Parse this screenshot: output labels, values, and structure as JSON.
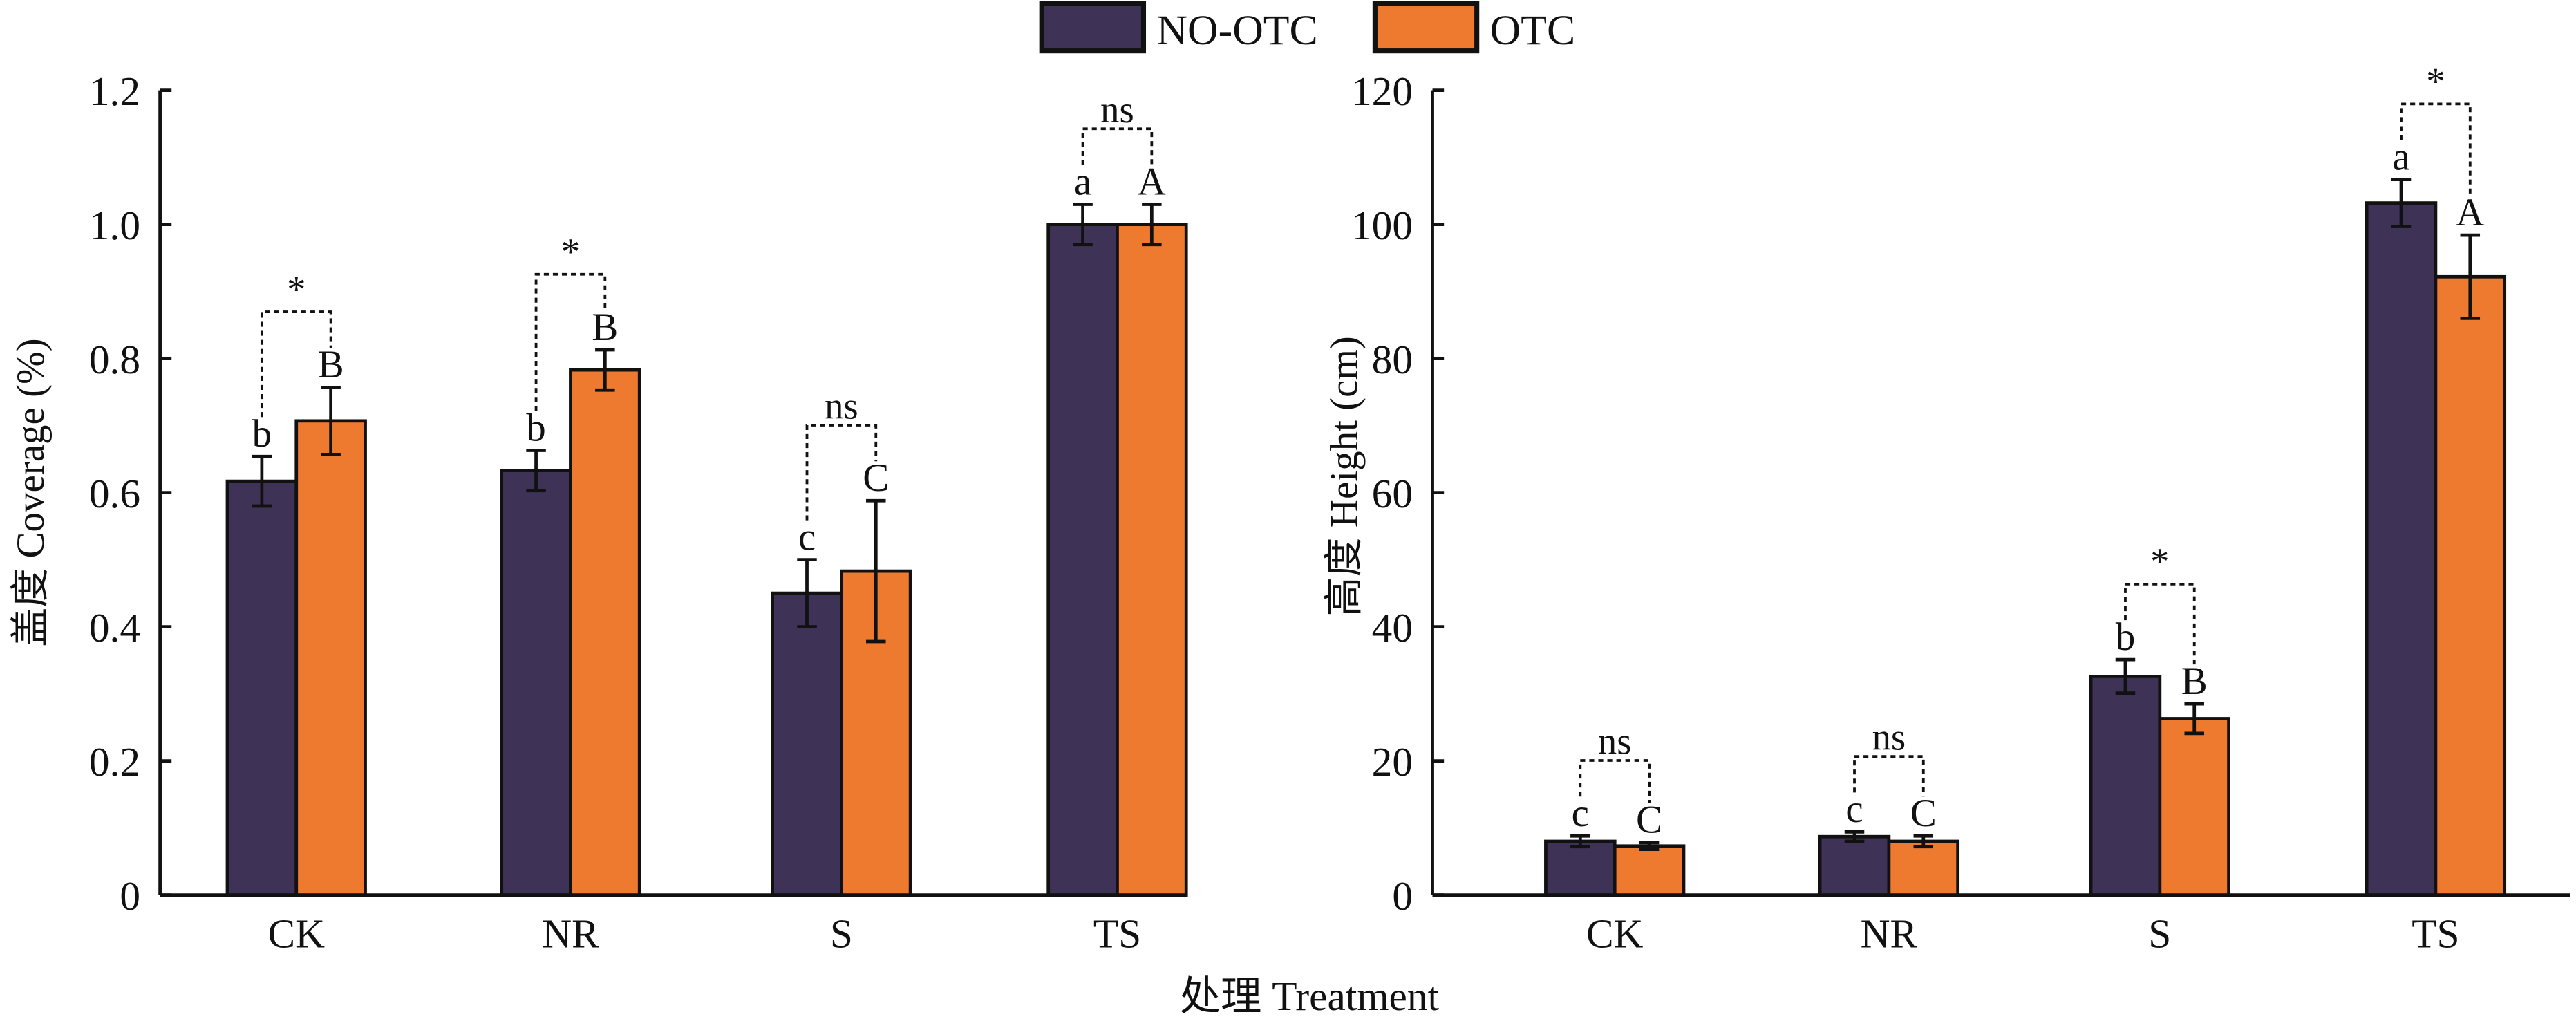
{
  "legend": {
    "items": [
      {
        "label": "NO-OTC",
        "color": "#3f3257"
      },
      {
        "label": "OTC",
        "color": "#ee7a30"
      }
    ]
  },
  "shared_xlabel": "处理 Treatment",
  "chart_data": [
    {
      "type": "bar",
      "title": "",
      "xlabel": "处理 Treatment",
      "ylabel": "盖度 Coverage (%)",
      "categories": [
        "CK",
        "NR",
        "S",
        "TS"
      ],
      "ylim": [
        0,
        1.2
      ],
      "yticks": [
        0,
        0.2,
        0.4,
        0.6,
        0.8,
        1.0,
        1.2
      ],
      "ytick_labels": [
        "0",
        "0.2",
        "0.4",
        "0.6",
        "0.8",
        "1.0",
        "1.2"
      ],
      "grid": false,
      "legend_position": "top-center",
      "series": [
        {
          "name": "NO-OTC",
          "color": "#3f3257",
          "values": [
            0.617,
            0.633,
            0.45,
            1.0
          ],
          "errors": [
            0.037,
            0.03,
            0.05,
            0.03
          ],
          "letters": [
            "b",
            "b",
            "c",
            "a"
          ]
        },
        {
          "name": "OTC",
          "color": "#ee7a30",
          "values": [
            0.707,
            0.783,
            0.483,
            1.0
          ],
          "errors": [
            0.05,
            0.03,
            0.105,
            0.03
          ],
          "letters": [
            "B",
            "B",
            "C",
            "A"
          ]
        }
      ],
      "significance": [
        "*",
        "*",
        "ns",
        "ns"
      ]
    },
    {
      "type": "bar",
      "title": "",
      "xlabel": "处理 Treatment",
      "ylabel": "高度 Height (cm)",
      "categories": [
        "CK",
        "NR",
        "S",
        "TS"
      ],
      "ylim": [
        0,
        120
      ],
      "yticks": [
        0,
        20,
        40,
        60,
        80,
        100,
        120
      ],
      "ytick_labels": [
        "0",
        "20",
        "40",
        "60",
        "80",
        "100",
        "120"
      ],
      "grid": false,
      "legend_position": "top-center",
      "series": [
        {
          "name": "NO-OTC",
          "color": "#3f3257",
          "values": [
            8.0,
            8.7,
            32.6,
            103.2
          ],
          "errors": [
            0.8,
            0.7,
            2.5,
            3.5
          ],
          "letters": [
            "c",
            "c",
            "b",
            "a"
          ]
        },
        {
          "name": "OTC",
          "color": "#ee7a30",
          "values": [
            7.3,
            8.0,
            26.3,
            92.2
          ],
          "errors": [
            0.5,
            0.8,
            2.2,
            6.2
          ],
          "letters": [
            "C",
            "C",
            "B",
            "A"
          ]
        }
      ],
      "significance": [
        "ns",
        "ns",
        "*",
        "*"
      ]
    }
  ]
}
